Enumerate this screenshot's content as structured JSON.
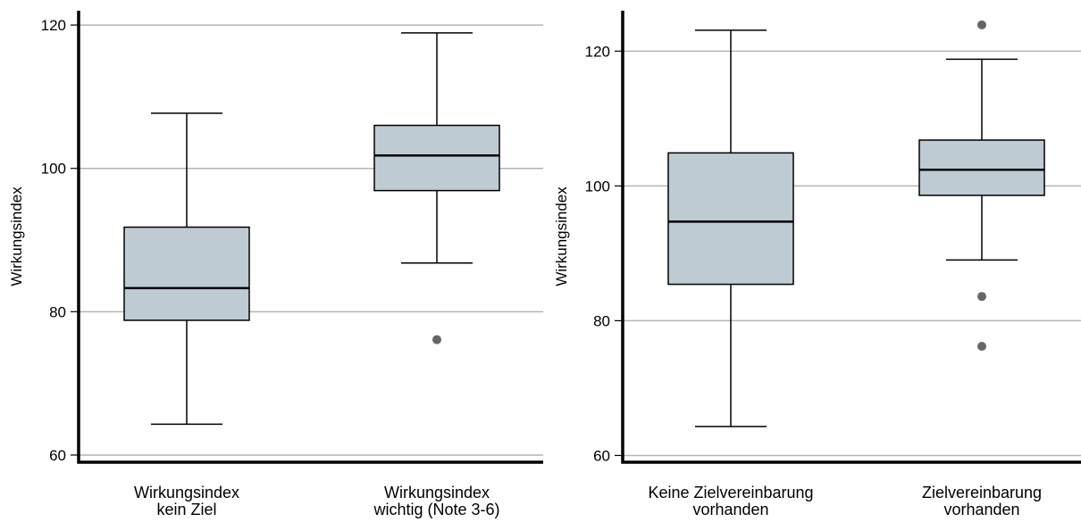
{
  "colors": {
    "box_fill": "#bfcbd2",
    "gridline": "#b4b4b4",
    "outlier": "#666666",
    "axis": "#000000"
  },
  "chart_data": [
    {
      "type": "boxplot",
      "ylabel": "Wirkungsindex",
      "ylim": [
        59,
        122
      ],
      "yticks": [
        60,
        80,
        100,
        120
      ],
      "grid": true,
      "categories": [
        [
          "Wirkungsindex",
          "kein Ziel"
        ],
        [
          "Wirkungsindex",
          "wichtig (Note 3-6)"
        ]
      ],
      "boxes": [
        {
          "whisker_low": 64.3,
          "q1": 78.8,
          "median": 83.3,
          "q3": 91.8,
          "whisker_high": 107.7,
          "outliers": []
        },
        {
          "whisker_low": 86.8,
          "q1": 96.9,
          "median": 101.8,
          "q3": 106.0,
          "whisker_high": 118.9,
          "outliers": [
            76.1
          ]
        }
      ]
    },
    {
      "type": "boxplot",
      "ylabel": "Wirkungsindex",
      "ylim": [
        59,
        126
      ],
      "yticks": [
        60,
        80,
        100,
        120
      ],
      "grid": true,
      "categories": [
        [
          "Keine Zielvereinbarung",
          "vorhanden"
        ],
        [
          "Zielvereinbarung",
          "vorhanden"
        ]
      ],
      "boxes": [
        {
          "whisker_low": 64.3,
          "q1": 85.4,
          "median": 94.7,
          "q3": 104.9,
          "whisker_high": 123.1,
          "outliers": []
        },
        {
          "whisker_low": 89.0,
          "q1": 98.6,
          "median": 102.4,
          "q3": 106.8,
          "whisker_high": 118.8,
          "outliers": [
            123.9,
            83.6,
            76.2
          ]
        }
      ]
    }
  ]
}
